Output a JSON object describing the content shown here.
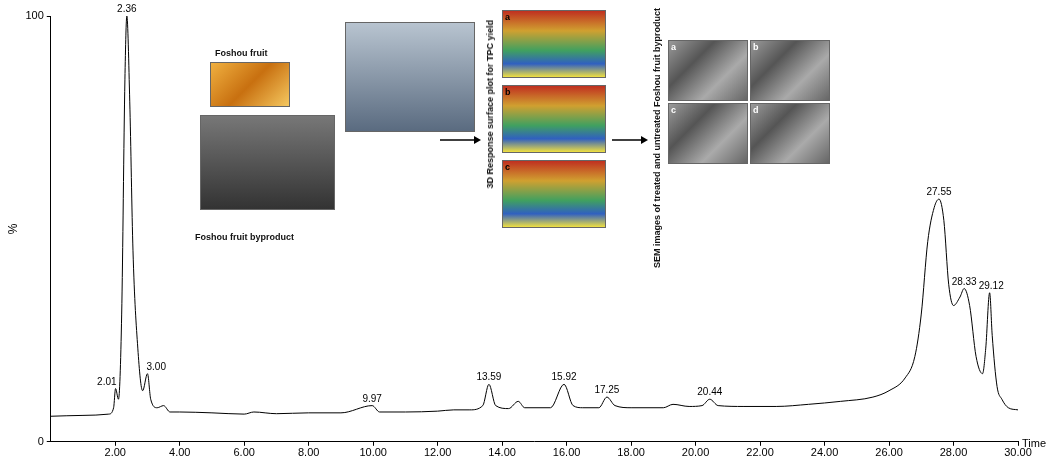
{
  "chart_data": {
    "type": "line",
    "x_label": "Time",
    "y_label": "%",
    "color": "#000000",
    "x": [
      0,
      1,
      1.8,
      1.95,
      2.01,
      2.1,
      2.2,
      2.3,
      2.36,
      2.45,
      2.55,
      2.7,
      2.85,
      3.0,
      3.1,
      3.3,
      3.5,
      3.7,
      4,
      5,
      6,
      6.3,
      7,
      8,
      9,
      9.97,
      10.2,
      11,
      12,
      12.5,
      13,
      13.4,
      13.59,
      13.8,
      14.2,
      14.5,
      14.7,
      15.5,
      15.92,
      16.2,
      16.5,
      17,
      17.25,
      17.5,
      18,
      19,
      19.3,
      19.8,
      20.2,
      20.44,
      20.7,
      21.5,
      22.5,
      23.5,
      24.5,
      25.5,
      26,
      26.5,
      26.8,
      27,
      27.2,
      27.4,
      27.55,
      27.7,
      27.85,
      28,
      28.2,
      28.33,
      28.5,
      28.7,
      28.9,
      29,
      29.12,
      29.2,
      29.35,
      29.5,
      29.7,
      30
    ],
    "values": [
      6,
      6.2,
      6.5,
      8,
      12.5,
      10,
      30,
      85,
      100,
      80,
      45,
      22,
      12,
      16,
      10,
      8,
      8.5,
      7,
      7,
      6.8,
      6.5,
      7,
      6.6,
      6.8,
      6.8,
      8.5,
      7,
      7,
      7.2,
      7.5,
      7.5,
      8.5,
      13.5,
      8.5,
      7.8,
      9.5,
      8,
      8,
      13.5,
      8.5,
      8,
      8,
      10.5,
      8.5,
      8,
      8,
      8.8,
      8.3,
      8.5,
      10,
      8.5,
      8.3,
      8.3,
      8.8,
      9.5,
      10.5,
      12,
      15,
      20,
      30,
      47,
      55,
      57,
      52,
      37,
      32,
      34,
      36,
      32,
      20,
      16,
      22,
      35,
      25,
      13,
      10,
      8,
      7.5
    ],
    "xlim": [
      0,
      30
    ],
    "xticks": [
      {
        "value": 2,
        "label": "2.00"
      },
      {
        "value": 4,
        "label": "4.00"
      },
      {
        "value": 6,
        "label": "6.00"
      },
      {
        "value": 8,
        "label": "8.00"
      },
      {
        "value": 10,
        "label": "10.00"
      },
      {
        "value": 12,
        "label": "12.00"
      },
      {
        "value": 14,
        "label": "14.00"
      },
      {
        "value": 16,
        "label": "16.00"
      },
      {
        "value": 18,
        "label": "18.00"
      },
      {
        "value": 20,
        "label": "20.00"
      },
      {
        "value": 22,
        "label": "22.00"
      },
      {
        "value": 24,
        "label": "24.00"
      },
      {
        "value": 26,
        "label": "26.00"
      },
      {
        "value": 28,
        "label": "28.00"
      },
      {
        "value": 30,
        "label": "30.00"
      }
    ],
    "ylim": [
      0,
      100
    ],
    "yticks": [
      0,
      100
    ],
    "grid": false,
    "annotations": [
      {
        "x": 2.01,
        "y": 12.5,
        "text": "2.01"
      },
      {
        "x": 2.36,
        "y": 100,
        "text": "2.36"
      },
      {
        "x": 3.0,
        "y": 16,
        "text": "3.00"
      },
      {
        "x": 9.97,
        "y": 8.5,
        "text": "9.97"
      },
      {
        "x": 13.59,
        "y": 13.5,
        "text": "13.59"
      },
      {
        "x": 15.92,
        "y": 13.5,
        "text": "15.92"
      },
      {
        "x": 17.25,
        "y": 10.5,
        "text": "17.25"
      },
      {
        "x": 20.44,
        "y": 10,
        "text": "20.44"
      },
      {
        "x": 27.55,
        "y": 57,
        "text": "27.55"
      },
      {
        "x": 28.33,
        "y": 36,
        "text": "28.33"
      },
      {
        "x": 29.12,
        "y": 35,
        "text": "29.12"
      }
    ]
  },
  "graphical_abstract": {
    "photo_panel": {
      "title": "Foshou fruit",
      "caption": "Foshou fruit byproduct"
    },
    "response_surface": {
      "title": "3D Response surface plot for TPC yield",
      "panels": [
        "a",
        "b",
        "c"
      ]
    },
    "sem": {
      "title": "SEM images of treated and untreated Foshou fruit byproduct",
      "panels": [
        "a",
        "b",
        "c",
        "d"
      ]
    }
  }
}
